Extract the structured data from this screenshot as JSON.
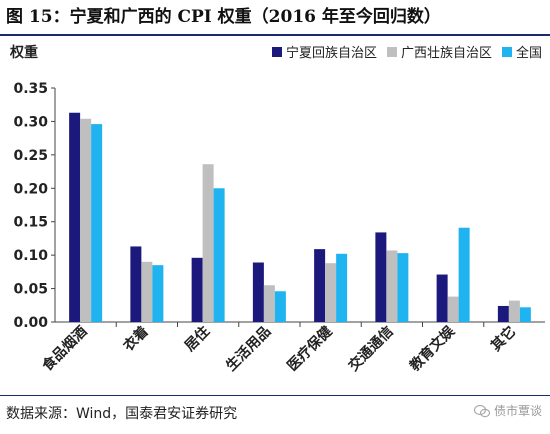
{
  "figure": {
    "title": "图 15：宁夏和广西的 CPI 权重（2016 年至今回归数）",
    "source": "数据来源：Wind，国泰君安证券研究",
    "watermark": "债市覃谈"
  },
  "chart_data": {
    "type": "bar",
    "title": "",
    "ylabel": "权重",
    "xlabel": "",
    "ylim": [
      0,
      0.35
    ],
    "yticks": [
      "0.00",
      "0.05",
      "0.10",
      "0.15",
      "0.20",
      "0.25",
      "0.30",
      "0.35"
    ],
    "grid": false,
    "legend_position": "top-right",
    "categories": [
      "食品烟酒",
      "衣着",
      "居住",
      "生活用品",
      "医疗保健",
      "交通通信",
      "教育文娱",
      "其它"
    ],
    "series": [
      {
        "name": "宁夏回族自治区",
        "color": "#1b1a7c",
        "values": [
          0.313,
          0.113,
          0.096,
          0.089,
          0.109,
          0.134,
          0.071,
          0.024
        ]
      },
      {
        "name": "广西壮族自治区",
        "color": "#bfbfbf",
        "values": [
          0.304,
          0.09,
          0.236,
          0.055,
          0.088,
          0.107,
          0.038,
          0.032
        ]
      },
      {
        "name": "全国",
        "color": "#1fb4f0",
        "values": [
          0.296,
          0.085,
          0.2,
          0.046,
          0.102,
          0.103,
          0.141,
          0.022
        ]
      }
    ]
  }
}
